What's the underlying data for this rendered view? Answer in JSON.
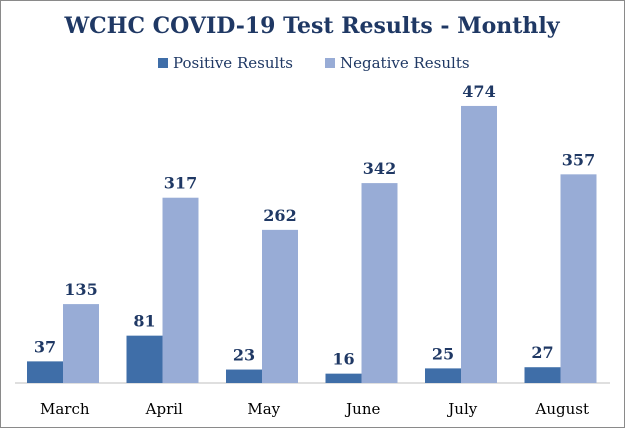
{
  "chart_data": {
    "type": "bar",
    "title": "WCHC COVID-19 Test Results - Monthly",
    "categories": [
      "March",
      "April",
      "May",
      "June",
      "July",
      "August"
    ],
    "series": [
      {
        "name": "Positive Results",
        "color": "#3f6ea8",
        "values": [
          37,
          81,
          23,
          16,
          25,
          27
        ]
      },
      {
        "name": "Negative Results",
        "color": "#98acd6",
        "values": [
          135,
          317,
          262,
          342,
          474,
          357
        ]
      }
    ],
    "ylim": [
      0,
      500
    ],
    "grid": false,
    "legend": "top"
  }
}
